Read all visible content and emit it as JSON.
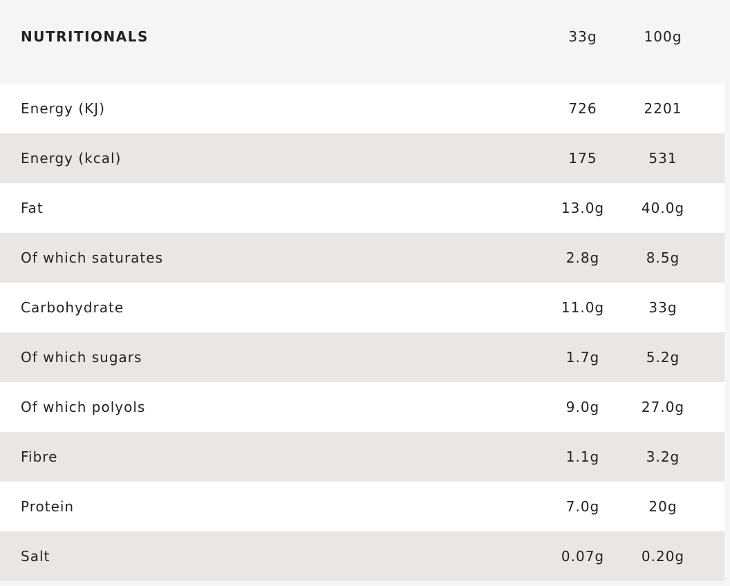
{
  "header": {
    "title": "NUTRITIONALS",
    "col1": "33g",
    "col2": "100g"
  },
  "rows": [
    {
      "label": "Energy (KJ)",
      "v1": "726",
      "v2": "2201"
    },
    {
      "label": "Energy (kcal)",
      "v1": "175",
      "v2": "531"
    },
    {
      "label": "Fat",
      "v1": "13.0g",
      "v2": "40.0g"
    },
    {
      "label": "Of which saturates",
      "v1": "2.8g",
      "v2": "8.5g"
    },
    {
      "label": "Carbohydrate",
      "v1": "11.0g",
      "v2": "33g"
    },
    {
      "label": "Of which sugars",
      "v1": "1.7g",
      "v2": "5.2g"
    },
    {
      "label": "Of which polyols",
      "v1": "9.0g",
      "v2": "27.0g"
    },
    {
      "label": "Fibre",
      "v1": "1.1g",
      "v2": "3.2g"
    },
    {
      "label": "Protein",
      "v1": "7.0g",
      "v2": "20g"
    },
    {
      "label": "Salt",
      "v1": "0.07g",
      "v2": "0.20g"
    }
  ]
}
